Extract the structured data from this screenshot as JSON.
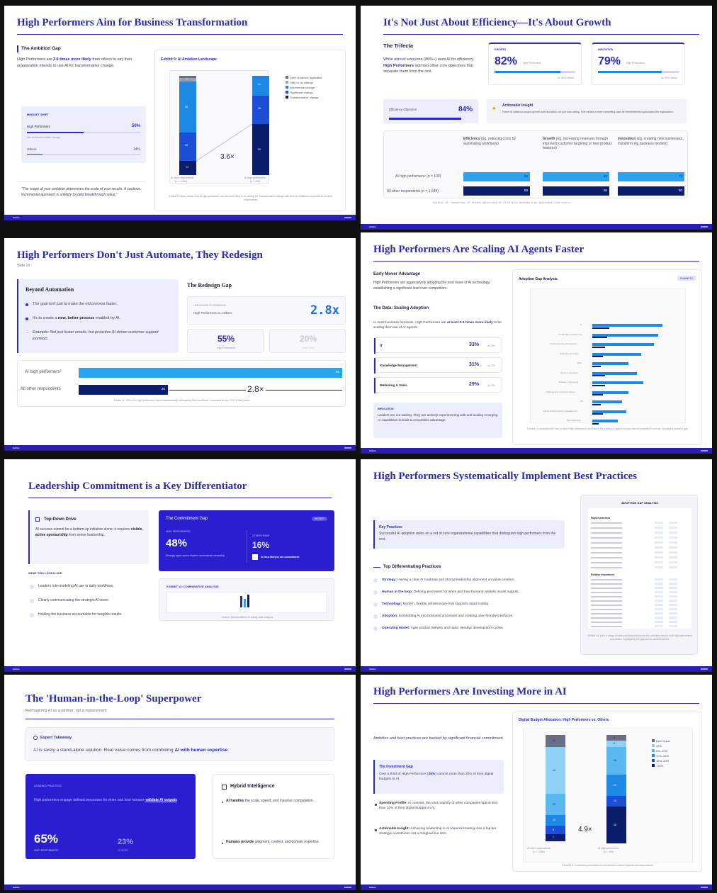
{
  "footer": {
    "author": "Author",
    "section": "Section"
  },
  "s1": {
    "title": "High Performers Aim for Business Transformation",
    "gap_heading": "The Ambition Gap",
    "gap_text_a": "High Performers are ",
    "gap_text_b": "3.6 times more likely",
    "gap_text_c": " than others to say their organization intends to use AI for transformative change.",
    "mindset_label": "MINDSET SHIFT",
    "hp_label": "High Performers",
    "hp_value": "50%",
    "hp_fill": 0.5,
    "hp_note": "Aim for transformative change",
    "other_label": "Others",
    "other_value": "14%",
    "other_fill": 0.14,
    "quote": "\"The scope of your ambition determines the scale of your results. A cautious, incremental approach is unlikely to yield breakthrough value.\"",
    "exhibit_title": "Exhibit 9: AI Ambition Landscape",
    "legend": [
      "Don't know/not applicable",
      "Little or no change",
      "Incremental change",
      "Significant change",
      "Transformative change"
    ],
    "bar_labels": {
      "a_top": "7",
      "a_mid": "48",
      "a_low": "28",
      "a_base": "14",
      "b_top": "31",
      "b_mid": "26",
      "b_base": "50"
    },
    "multiplier": "3.6×",
    "cat_a": "AI other respondents",
    "cat_a_n": "(n = 1,684)",
    "cat_b": "AI high performers²",
    "cat_b_n": "(n = 108)",
    "caption": "Exhibit 9 clearly shows that AI high performers are far more likely to be aiming for 'transformative change' with their AI initiatives compared to all other respondents."
  },
  "s2": {
    "title": "It's Not Just About Efficiency—It's About Growth",
    "trifecta": "The Trifecta",
    "text_a": "While almost everyone (80%+) uses AI for efficiency, ",
    "text_b": "High Performers",
    "text_c": " add two other core objectives that separate them from the rest.",
    "growth_label": "GROWTH",
    "growth_value": "82%",
    "growth_note": "High Performers",
    "growth_cmp": "vs. 50% others",
    "innov_label": "INNOVATION",
    "innov_value": "79%",
    "innov_note": "High Performers",
    "innov_cmp": "vs. 50% others",
    "eff_label": "Efficiency Objective",
    "eff_value": "84%",
    "insight_title": "Actionable Insight",
    "insight_text": "Frame AI initiatives around growth and innovation, not just cost-cutting. This creates a more compelling case for investment and galvanizes the organization.",
    "col1_a": "Efficiency",
    "col1_b": " (eg, reducing costs by automating workflows)",
    "col2_a": "Growth",
    "col2_b": " (eg, increasing revenues through improved customer targeting or new product features)",
    "col3_a": "Innovation",
    "col3_b": " (eg, creating new businesses, transform-ing business models)",
    "row1": "AI high performers² (n = 109)",
    "row2": "All other respondents (n = 1,644)",
    "hp_vals": [
      "84",
      "82",
      "79"
    ],
    "ot_vals": [
      "80",
      "50",
      "50"
    ],
    "caption": "Exhibit 10: Comparison of stated objectives of AI efforts between high performers and others."
  },
  "s3": {
    "title": "High Performers Don't Just Automate, They Redesign",
    "slide_no": "Slide 19",
    "beyond": "Beyond Automation",
    "b1": "The goal isn't just to make the old process faster.",
    "b2a": "It's to create a ",
    "b2b": "new, better process",
    "b2c": " enabled by AI.",
    "b3": "Example: Not just faster emails, but proactive AI-driven customer support journeys.",
    "gap_title": "The Redesign Gap",
    "likelihood": "LIKELIHOOD TO REDESIGN",
    "vs": "High Performers vs. Others",
    "mult": "2.8x",
    "hp_pct": "55%",
    "hp_lbl": "High Performers",
    "ot_pct": "20%",
    "ot_lbl": "Other firms",
    "row1": "AI high performers²",
    "row1_val": "55",
    "row2": "All other respondents",
    "row2_val": "20",
    "mult2": "2.8×",
    "caption": "Exhibit 11: 55% of AI high performers report fundamentally redesigning their workflows, compared to only 20% of their peers."
  },
  "s4": {
    "title": "High Performers Are Scaling AI Agents Faster",
    "early": "Early Mover Advantage",
    "early_text": "High Performers are aggressively adopting the next wave of AI technology, establishing a significant lead over competitors.",
    "data_title": "The Data: Scaling Adoption",
    "data_text_a": "In most business functions, High Performers are ",
    "data_text_b": "at least 3-4 times more likely",
    "data_text_c": " to be scaling their use of AI agents.",
    "rows": [
      {
        "name": "IT",
        "hp": "33%",
        "vs": "vs. 8%"
      },
      {
        "name": "Knowledge Management",
        "hp": "31%",
        "vs": "vs. 7%"
      },
      {
        "name": "Marketing & Sales",
        "hp": "29%",
        "vs": "vs. 6%"
      }
    ],
    "impl_label": "IMPLICATION",
    "impl_text": "Leaders are not waiting. They are actively experimenting with and scaling emerging AI capabilities to build a competitive advantage.",
    "chart_title": "Adoption Gap Analysis",
    "badge": "Exhibit 12",
    "functions": [
      "IT",
      "Knowledge management",
      "Product/service development",
      "Marketing and sales",
      "Risk",
      "Service operations",
      "Software engineering",
      "Strategy and corporate finance",
      "HR",
      "Supply chain/inventory management",
      "Manufacturing"
    ],
    "caption": "Exhibit 12 compares the rate at which high performers and others are scaling AI agents across various business functions, showing a massive gap."
  },
  "s5": {
    "title": "Leadership Commitment is a Key Differentiator",
    "topdown": "Top-Down Drive",
    "td_a": "AI success cannot be a bottom-up initiative alone; it requires ",
    "td_b": "visible, active sponsorship",
    "td_c": " from senior leadership.",
    "looks": "WHAT THIS LOOKS LIKE",
    "items": [
      "Leaders role-modeling AI use in daily workflows.",
      "Clearly communicating the strategic AI vision.",
      "Holding the business accountable for tangible results."
    ],
    "gap_title": "The Commitment Gap",
    "insight": "INSIGHT",
    "hp_label": "HIGH PERFORMERS",
    "hp_val": "48%",
    "hp_note": "Strongly agree senior leaders demonstrate ownership",
    "ot_label": "OTHER FIRMS",
    "ot_val": "16%",
    "ot_note": "3x less likely to see commitment",
    "exhibit": "EXHIBIT 13: COMPARATIVE ANALYSIS",
    "source": "Source: QuantumBlack AI survey data analysis"
  },
  "s6": {
    "title": "High Performers Systematically Implement Best Practices",
    "key_title": "Key Practices",
    "key_text": "Successful AI adoption relies on a set of core organizational capabilities that distinguish high performers from the rest.",
    "top_title": "Top Differentiating Practices",
    "practices": [
      {
        "k": "Strategy:",
        "v": " Having a clear AI roadmap and strong leadership alignment on value creation."
      },
      {
        "k": "Human in the loop:",
        "v": " Defining processes for when and how humans validate model outputs."
      },
      {
        "k": "Technology:",
        "v": " Modern, flexible infrastructure that supports rapid scaling."
      },
      {
        "k": "Adoption:",
        "v": " Embedding AI into business processes and creating user-friendly interfaces."
      },
      {
        "k": "Operating Model:",
        "v": " Agile product delivery and rapid, iterative development cycles."
      }
    ],
    "table_title": "ADOPTION GAP ANALYSIS",
    "hp_section": "Higher practices",
    "ot_section": "Relative importance",
    "caption": "Exhibit 14: Lists a range of best practices and shows the adoption rate for both high performers and others, highlighting the gap across all dimensions."
  },
  "s7": {
    "title": "The 'Human-in-the-Loop' Superpower",
    "subtitle": "Reimagining AI as a partner, not a replacement",
    "expert": "Expert Takeaway",
    "exp_a": "AI is rarely a stand-alone solution. Real value comes from combining ",
    "exp_b": "AI with human expertise",
    "exp_c": ".",
    "leading": "LEADING PRACTICE",
    "lead_a": "High performers engage defined processes for when and how humans ",
    "lead_b": "validate AI outputs",
    "hp_val": "65%",
    "hp_lbl": "HIGH PERFORMERS",
    "ot_val": "23%",
    "ot_lbl": "OTHERS",
    "hybrid": "Hybrid Intelligence",
    "h1a": "AI handles",
    "h1b": " the scale, speed, and massive computation.",
    "h2a": "Humans provide",
    "h2b": " judgment, context, and domain expertise."
  },
  "s8": {
    "title": "High Performers Are Investing More in AI",
    "intro": "Ambition and best practices are backed by significant financial commitment.",
    "gap_title": "The Investment Gap",
    "gap_a": "Over a third of High Performers (",
    "gap_b": "35%",
    "gap_c": ") commit more than 20% of their digital budgets to AI.",
    "sp_a": "Spending Profile:",
    "sp_b": " In contrast, the vast majority of other companies spend less than 10% of their digital budget on AI.",
    "ai_a": "Actionable Insight:",
    "ai_b": " Achieving leadership in AI requires treating it as a top-tier strategic investment, not a marginal line item.",
    "chart_title": "Digital Budget Allocation: High Performers vs. Others",
    "legend": [
      "Don't know",
      "≤5%",
      "6%–10%",
      "11%–15%",
      "16%–20%",
      ">20%"
    ],
    "a_labels": [
      "11",
      "44",
      "20",
      "10",
      "8",
      "7"
    ],
    "b_labels": [
      "5",
      "6",
      "26",
      "20",
      "10",
      "35"
    ],
    "mult": "4.9×",
    "cat_a": "AI other respondents",
    "cat_a_n": "(n = 1,088)",
    "cat_b": "AI high performers²",
    "cat_b_n": "(n = 100)",
    "caption": "Exhibit 15: Contrasting investment levels between market leaders and respondents."
  }
}
